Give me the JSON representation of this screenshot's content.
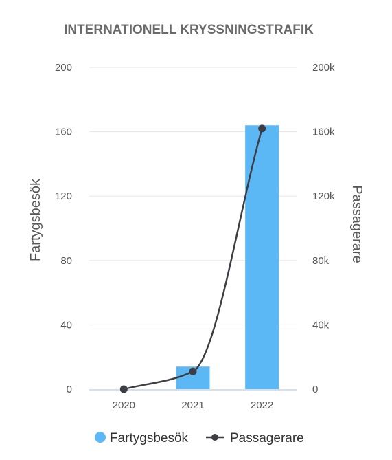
{
  "chart_data": {
    "type": "bar",
    "title": "INTERNATIONELL KRYSSNINGSTRAFIK",
    "categories": [
      "2020",
      "2021",
      "2022"
    ],
    "series": [
      {
        "name": "Fartygsbesök",
        "type": "bar",
        "axis": "left",
        "values": [
          0,
          14,
          164
        ],
        "color": "#5bb8f5"
      },
      {
        "name": "Passagerare",
        "type": "line",
        "axis": "right",
        "values": [
          0,
          11000,
          162000
        ],
        "color": "#3d3d44"
      }
    ],
    "ylabel": "Fartygsbesök",
    "y2label": "Passagerare",
    "ylim": [
      0,
      200
    ],
    "y2lim": [
      0,
      200000
    ],
    "yticks": [
      "0",
      "40",
      "80",
      "120",
      "160",
      "200"
    ],
    "y2ticks": [
      "0",
      "40k",
      "80k",
      "120k",
      "160k",
      "200k"
    ],
    "grid": true,
    "legend": "bottom"
  }
}
